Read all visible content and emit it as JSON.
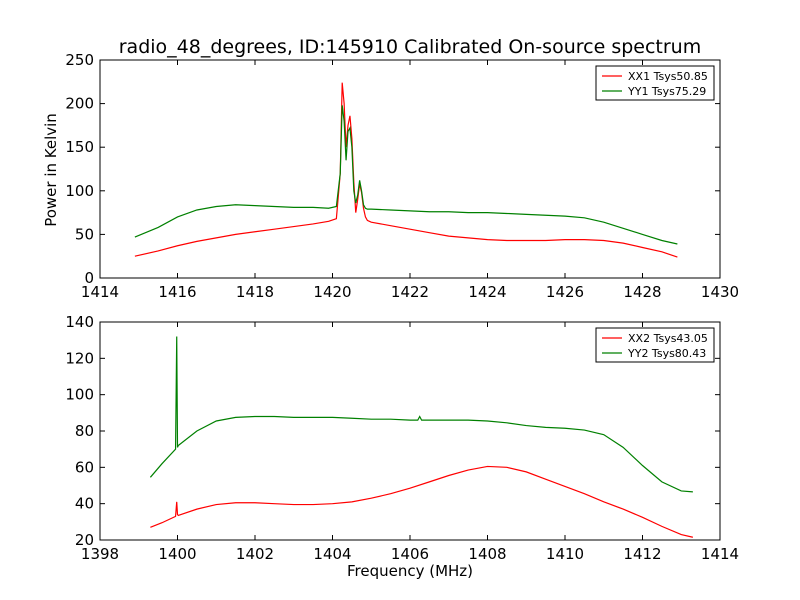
{
  "title": "radio_48_degrees, ID:145910 Calibrated On-source spectrum",
  "ylabel": "Power in Kelvin",
  "xlabel": "Frequency (MHz)",
  "chart_data": [
    {
      "type": "line",
      "xlim": [
        1414,
        1430
      ],
      "ylim": [
        0,
        250
      ],
      "xticks": [
        1414,
        1416,
        1418,
        1420,
        1422,
        1424,
        1426,
        1428,
        1430
      ],
      "yticks": [
        0,
        50,
        100,
        150,
        200,
        250
      ],
      "legend_position": "top-right",
      "series": [
        {
          "name": "XX1 Tsys50.85",
          "color": "#ff0000",
          "x": [
            1414.9,
            1415.5,
            1416.0,
            1416.5,
            1417.0,
            1417.5,
            1418.0,
            1418.5,
            1419.0,
            1419.5,
            1419.9,
            1420.1,
            1420.2,
            1420.25,
            1420.3,
            1420.35,
            1420.4,
            1420.45,
            1420.5,
            1420.55,
            1420.6,
            1420.65,
            1420.7,
            1420.75,
            1420.8,
            1420.85,
            1420.9,
            1421.0,
            1421.5,
            1422.0,
            1422.5,
            1423.0,
            1423.5,
            1424.0,
            1424.5,
            1425.0,
            1425.5,
            1426.0,
            1426.5,
            1427.0,
            1427.5,
            1428.0,
            1428.5,
            1428.9
          ],
          "values": [
            25,
            31,
            37,
            42,
            46,
            50,
            53,
            56,
            59,
            62,
            65,
            68,
            120,
            224,
            200,
            150,
            175,
            186,
            160,
            110,
            75,
            90,
            108,
            98,
            80,
            70,
            66,
            64,
            60,
            56,
            52,
            48,
            46,
            44,
            43,
            43,
            43,
            44,
            44,
            43,
            40,
            35,
            30,
            24
          ]
        },
        {
          "name": "YY1 Tsys75.29",
          "color": "#008000",
          "x": [
            1414.9,
            1415.5,
            1416.0,
            1416.5,
            1417.0,
            1417.5,
            1418.0,
            1418.5,
            1419.0,
            1419.5,
            1419.9,
            1420.1,
            1420.2,
            1420.25,
            1420.3,
            1420.35,
            1420.4,
            1420.45,
            1420.5,
            1420.55,
            1420.6,
            1420.65,
            1420.7,
            1420.75,
            1420.8,
            1420.85,
            1420.9,
            1421.0,
            1421.5,
            1422.0,
            1422.5,
            1423.0,
            1423.5,
            1424.0,
            1424.5,
            1425.0,
            1425.5,
            1426.0,
            1426.5,
            1427.0,
            1427.5,
            1428.0,
            1428.5,
            1428.9
          ],
          "values": [
            47,
            58,
            70,
            78,
            82,
            84,
            83,
            82,
            81,
            81,
            80,
            82,
            120,
            198,
            180,
            135,
            168,
            172,
            150,
            100,
            86,
            95,
            112,
            100,
            84,
            80,
            79,
            79,
            78,
            77,
            76,
            76,
            75,
            75,
            74,
            73,
            72,
            71,
            69,
            64,
            57,
            50,
            43,
            39
          ]
        }
      ]
    },
    {
      "type": "line",
      "xlim": [
        1398,
        1414
      ],
      "ylim": [
        20,
        140
      ],
      "xticks": [
        1398,
        1400,
        1402,
        1404,
        1406,
        1408,
        1410,
        1412,
        1414
      ],
      "yticks": [
        20,
        40,
        60,
        80,
        100,
        120,
        140
      ],
      "legend_position": "top-right",
      "series": [
        {
          "name": "XX2 Tsys43.05",
          "color": "#ff0000",
          "x": [
            1399.3,
            1399.6,
            1399.95,
            1399.98,
            1400.0,
            1400.02,
            1400.5,
            1401.0,
            1401.5,
            1402.0,
            1402.5,
            1403.0,
            1403.5,
            1404.0,
            1404.5,
            1405.0,
            1405.5,
            1406.0,
            1406.5,
            1407.0,
            1407.5,
            1408.0,
            1408.5,
            1409.0,
            1409.5,
            1410.0,
            1410.5,
            1411.0,
            1411.5,
            1412.0,
            1412.5,
            1413.0,
            1413.3
          ],
          "values": [
            27,
            29.5,
            33,
            41,
            34,
            33.5,
            37,
            39.5,
            40.5,
            40.5,
            40,
            39.5,
            39.5,
            40,
            41,
            43,
            45.5,
            48.5,
            52,
            55.5,
            58.5,
            60.5,
            60,
            57.5,
            53.5,
            49.5,
            45.5,
            41,
            37,
            32.5,
            27.5,
            23,
            21.5
          ]
        },
        {
          "name": "YY2 Tsys80.43",
          "color": "#008000",
          "x": [
            1399.3,
            1399.6,
            1399.95,
            1399.98,
            1400.0,
            1400.02,
            1400.5,
            1401.0,
            1401.5,
            1402.0,
            1402.5,
            1403.0,
            1403.5,
            1404.0,
            1404.5,
            1405.0,
            1405.5,
            1406.0,
            1406.2,
            1406.25,
            1406.3,
            1406.5,
            1407.0,
            1407.5,
            1408.0,
            1408.5,
            1409.0,
            1409.5,
            1410.0,
            1410.5,
            1411.0,
            1411.5,
            1412.0,
            1412.5,
            1413.0,
            1413.3
          ],
          "values": [
            54.5,
            62,
            70,
            132,
            71,
            72,
            80,
            85.5,
            87.5,
            88,
            88,
            87.5,
            87.5,
            87.5,
            87,
            86.5,
            86.5,
            86,
            86,
            88,
            86,
            86,
            86,
            86,
            85.5,
            84.5,
            83,
            82,
            81.5,
            80.5,
            78,
            71,
            61,
            52,
            47,
            46.5
          ]
        }
      ]
    }
  ]
}
